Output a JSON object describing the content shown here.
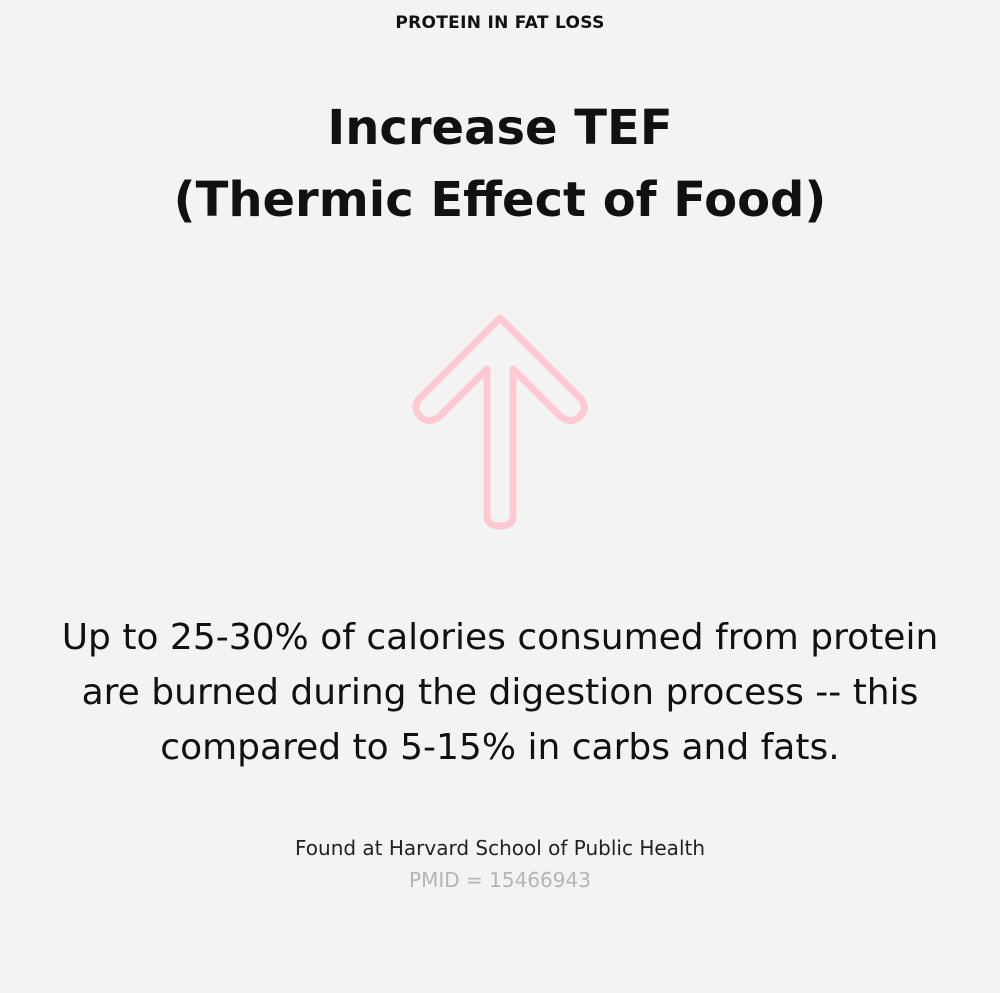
{
  "header": {
    "label": "PROTEIN IN FAT LOSS"
  },
  "title": {
    "line1": "Increase TEF",
    "line2": "(Thermic Effect of Food)"
  },
  "icon": {
    "name": "arrow-up-icon",
    "color": "#ffc9d2"
  },
  "body": {
    "text": "Up to 25-30% of calories consumed from protein are burned during the digestion process -- this compared to 5-15% in carbs and fats."
  },
  "source": {
    "text": "Found at Harvard School of Public Health",
    "pmid": "PMID = 15466943"
  }
}
